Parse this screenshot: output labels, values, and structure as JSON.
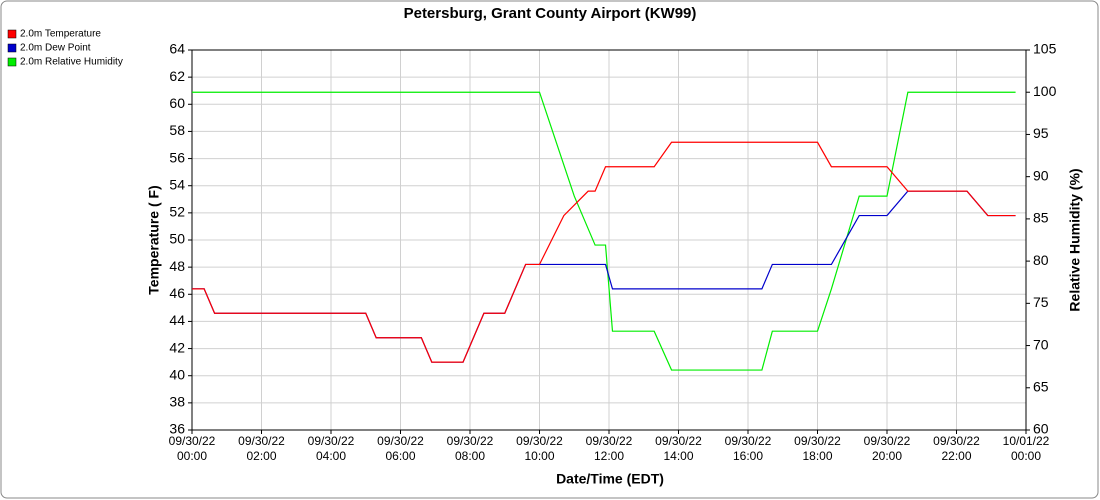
{
  "chart_data": {
    "type": "line",
    "title": "Petersburg, Grant County Airport (KW99)",
    "x_label": "Date/Time (EDT)",
    "y_label": "Temperature ( F)",
    "y2_label": "Relative Humidity (%)",
    "xlim": [
      0,
      24
    ],
    "xticks": [
      {
        "value": 0,
        "label": "09/30/22 00:00"
      },
      {
        "value": 2,
        "label": "09/30/22 02:00"
      },
      {
        "value": 4,
        "label": "09/30/22 04:00"
      },
      {
        "value": 6,
        "label": "09/30/22 06:00"
      },
      {
        "value": 8,
        "label": "09/30/22 08:00"
      },
      {
        "value": 10,
        "label": "09/30/22 10:00"
      },
      {
        "value": 12,
        "label": "09/30/22 12:00"
      },
      {
        "value": 14,
        "label": "09/30/22 14:00"
      },
      {
        "value": 16,
        "label": "09/30/22 16:00"
      },
      {
        "value": 18,
        "label": "09/30/22 18:00"
      },
      {
        "value": 20,
        "label": "09/30/22 20:00"
      },
      {
        "value": 22,
        "label": "09/30/22 22:00"
      },
      {
        "value": 24,
        "label": "10/01/22 00:00"
      }
    ],
    "ylim": [
      36,
      64
    ],
    "yticks": [
      36,
      38,
      40,
      42,
      44,
      46,
      48,
      50,
      52,
      54,
      56,
      58,
      60,
      62,
      64
    ],
    "y2lim": [
      60,
      105
    ],
    "y2ticks": [
      60,
      65,
      70,
      75,
      80,
      85,
      90,
      95,
      100,
      105
    ],
    "grid": true,
    "legend": "top-left",
    "series": [
      {
        "name": "2.0m Temperature",
        "color": "#ff0000",
        "x": [
          0,
          0.35,
          0.65,
          5.0,
          5.3,
          6.6,
          6.9,
          7.8,
          8.4,
          9.0,
          9.6,
          10.0,
          10.7,
          11.4,
          11.6,
          11.9,
          13.3,
          13.8,
          18.0,
          18.4,
          20.0,
          20.6,
          22.3,
          22.9,
          23.7
        ],
        "values": [
          46.4,
          46.4,
          44.6,
          44.6,
          42.8,
          42.8,
          41.0,
          41.0,
          44.6,
          44.6,
          48.2,
          48.2,
          51.8,
          53.6,
          53.6,
          55.4,
          55.4,
          57.2,
          57.2,
          55.4,
          55.4,
          53.6,
          53.6,
          51.8,
          51.8
        ]
      },
      {
        "name": "2.0m Dew Point",
        "color": "#0000cc",
        "x": [
          0,
          0.35,
          0.65,
          5.0,
          5.3,
          6.6,
          6.9,
          7.8,
          8.4,
          9.0,
          9.6,
          11.9,
          12.1,
          16.4,
          16.7,
          18.4,
          19.2,
          20.0,
          20.6,
          22.3,
          22.9,
          23.7
        ],
        "values": [
          46.4,
          46.4,
          44.6,
          44.6,
          42.8,
          42.8,
          41.0,
          41.0,
          44.6,
          44.6,
          48.2,
          48.2,
          46.4,
          46.4,
          48.2,
          48.2,
          51.8,
          51.8,
          53.6,
          53.6,
          51.8,
          51.8
        ]
      },
      {
        "name": "2.0m Relative Humidity",
        "color": "#00ee00",
        "axis": "y2",
        "x": [
          0,
          10.0,
          11.0,
          11.6,
          11.9,
          12.1,
          13.3,
          13.8,
          16.4,
          16.7,
          18.0,
          18.4,
          19.2,
          20.0,
          20.6,
          23.7
        ],
        "values": [
          100,
          100,
          87.7,
          81.9,
          81.9,
          71.7,
          71.7,
          67.1,
          67.1,
          71.7,
          71.7,
          76.7,
          87.7,
          87.7,
          100,
          100
        ]
      }
    ]
  }
}
